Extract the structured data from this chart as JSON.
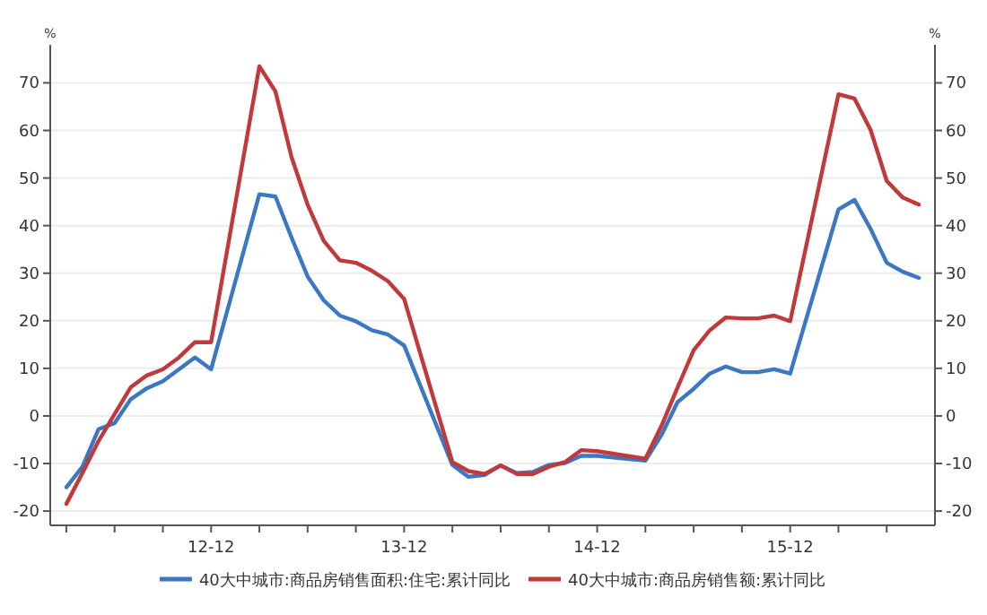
{
  "chart_data": {
    "type": "line",
    "x": [
      "2012-03",
      "2012-04",
      "2012-05",
      "2012-06",
      "2012-07",
      "2012-08",
      "2012-09",
      "2012-10",
      "2012-11",
      "2012-12",
      "2013-03",
      "2013-04",
      "2013-05",
      "2013-06",
      "2013-07",
      "2013-08",
      "2013-09",
      "2013-10",
      "2013-11",
      "2013-12",
      "2014-03",
      "2014-04",
      "2014-05",
      "2014-06",
      "2014-07",
      "2014-08",
      "2014-09",
      "2014-10",
      "2014-11",
      "2014-12",
      "2015-03",
      "2015-04",
      "2015-05",
      "2015-06",
      "2015-07",
      "2015-08",
      "2015-09",
      "2015-10",
      "2015-11",
      "2015-12",
      "2016-03",
      "2016-04",
      "2016-05",
      "2016-06",
      "2016-07",
      "2016-08"
    ],
    "series": [
      {
        "name": "40大中城市:商品房销售面积:住宅:累计同比",
        "color": "#3a78c3",
        "values": [
          -15,
          -10.7,
          -2.8,
          -1.5,
          3.5,
          5.8,
          7.3,
          9.8,
          12.3,
          9.8,
          46.6,
          46.1,
          37.5,
          29.3,
          24.3,
          21.1,
          19.9,
          18,
          17.1,
          14.8,
          -10.3,
          -12.8,
          -12.4,
          -10.4,
          -12,
          -11.8,
          -10.3,
          -9.9,
          -8.4,
          -8.4,
          -9.4,
          -4,
          2.9,
          5.7,
          8.9,
          10.4,
          9.2,
          9.2,
          9.8,
          8.9,
          43.4,
          45.4,
          39.3,
          32.2,
          30.3,
          29
        ]
      },
      {
        "name": "40大中城市:商品房销售额:累计同比",
        "color": "#c0393b",
        "values": [
          -18.5,
          -12,
          -5.3,
          0.4,
          6,
          8.5,
          9.8,
          12.3,
          15.5,
          15.5,
          73.5,
          68.2,
          54.4,
          44.4,
          36.8,
          32.7,
          32.2,
          30.5,
          28.3,
          24.6,
          -9.7,
          -11.6,
          -12.2,
          -10.4,
          -12.2,
          -12.2,
          -10.7,
          -9.7,
          -7.2,
          -7.4,
          -9,
          -2.1,
          6,
          13.8,
          18,
          20.7,
          20.5,
          20.5,
          21.1,
          19.9,
          67.6,
          66.7,
          60.1,
          49.4,
          45.9,
          44.4
        ]
      }
    ],
    "xlim": [
      "2012-02",
      "2016-09"
    ],
    "xticks": [
      {
        "value": "2012-03",
        "label": null
      },
      {
        "value": "2012-06",
        "label": null
      },
      {
        "value": "2012-09",
        "label": null
      },
      {
        "value": "2012-12",
        "label": "12-12"
      },
      {
        "value": "2013-03",
        "label": null
      },
      {
        "value": "2013-06",
        "label": null
      },
      {
        "value": "2013-09",
        "label": null
      },
      {
        "value": "2013-12",
        "label": "13-12"
      },
      {
        "value": "2014-03",
        "label": null
      },
      {
        "value": "2014-06",
        "label": null
      },
      {
        "value": "2014-09",
        "label": null
      },
      {
        "value": "2014-12",
        "label": "14-12"
      },
      {
        "value": "2015-03",
        "label": null
      },
      {
        "value": "2015-06",
        "label": null
      },
      {
        "value": "2015-09",
        "label": null
      },
      {
        "value": "2015-12",
        "label": "15-12"
      },
      {
        "value": "2016-03",
        "label": null
      },
      {
        "value": "2016-06",
        "label": null
      }
    ],
    "ylim": [
      -23,
      78
    ],
    "yticks": [
      -20,
      -10,
      0,
      10,
      20,
      30,
      40,
      50,
      60,
      70
    ],
    "y2lim": [
      -23,
      78
    ],
    "y2ticks": [
      -20,
      -10,
      0,
      10,
      20,
      30,
      40,
      50,
      60,
      70
    ],
    "ylabel": "%",
    "y2label": "%",
    "grid": "y",
    "legend": "bottom",
    "line_style": "solid",
    "marker": "none"
  }
}
